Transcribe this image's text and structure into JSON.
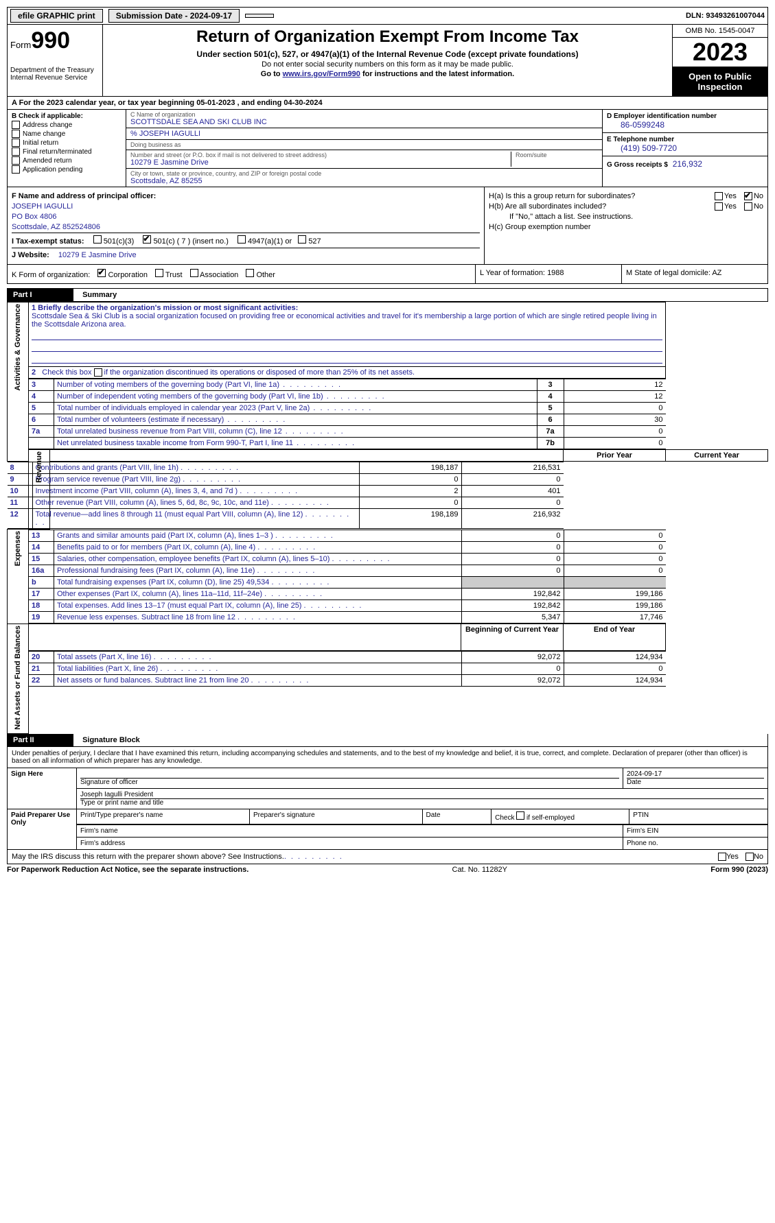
{
  "topbar": {
    "efile": "efile GRAPHIC print",
    "submission_label": "Submission Date - 2024-09-17",
    "dln_label": "DLN: 93493261007044"
  },
  "header": {
    "form_prefix": "Form",
    "form_number": "990",
    "dept": "Department of the Treasury Internal Revenue Service",
    "title": "Return of Organization Exempt From Income Tax",
    "sub1": "Under section 501(c), 527, or 4947(a)(1) of the Internal Revenue Code (except private foundations)",
    "sub2": "Do not enter social security numbers on this form as it may be made public.",
    "sub3_pre": "Go to ",
    "sub3_link": "www.irs.gov/Form990",
    "sub3_post": " for instructions and the latest information.",
    "omb": "OMB No. 1545-0047",
    "year": "2023",
    "open": "Open to Public Inspection"
  },
  "lineA": "A   For the 2023 calendar year, or tax year beginning 05-01-2023    , and ending 04-30-2024",
  "boxB": {
    "header": "B Check if applicable:",
    "items": [
      "Address change",
      "Name change",
      "Initial return",
      "Final return/terminated",
      "Amended return",
      "Application pending"
    ]
  },
  "boxC": {
    "name_lbl": "C Name of organization",
    "name": "SCOTTSDALE SEA AND SKI CLUB INC",
    "care_of": "% JOSEPH IAGULLI",
    "dba_lbl": "Doing business as",
    "dba": "",
    "street_lbl": "Number and street (or P.O. box if mail is not delivered to street address)",
    "street": "10279 E Jasmine Drive",
    "room_lbl": "Room/suite",
    "room": "",
    "city_lbl": "City or town, state or province, country, and ZIP or foreign postal code",
    "city": "Scottsdale, AZ   85255"
  },
  "boxD": {
    "ein_lbl": "D Employer identification number",
    "ein": "86-0599248",
    "phone_lbl": "E Telephone number",
    "phone": "(419) 509-7720",
    "gross_lbl": "G Gross receipts $",
    "gross": "216,932"
  },
  "boxF": {
    "lbl": "F   Name and address of principal officer:",
    "name": "JOSEPH IAGULLI",
    "addr1": "PO Box 4806",
    "addr2": "Scottsdale, AZ   852524806"
  },
  "boxH": {
    "ha": "H(a)  Is this a group return for subordinates?",
    "hb": "H(b)  Are all subordinates included?",
    "hb_note": "If \"No,\" attach a list. See instructions.",
    "hc": "H(c)  Group exemption number"
  },
  "lineI": {
    "lbl": "I    Tax-exempt status:",
    "opts": [
      "501(c)(3)",
      "501(c) ( 7 ) (insert no.)",
      "4947(a)(1) or",
      "527"
    ]
  },
  "lineJ": {
    "lbl": "J    Website:",
    "val": "10279 E Jasmine Drive"
  },
  "lineK": {
    "lbl": "K Form of organization:",
    "opts": [
      "Corporation",
      "Trust",
      "Association",
      "Other"
    ],
    "L_lbl": "L Year of formation:",
    "L_val": "1988",
    "M_lbl": "M State of legal domicile:",
    "M_val": "AZ"
  },
  "part1": {
    "num": "Part I",
    "title": "Summary"
  },
  "summary": {
    "sections": {
      "gov": "Activities & Governance",
      "rev": "Revenue",
      "exp": "Expenses",
      "net": "Net Assets or Fund Balances"
    },
    "mission_lbl": "1   Briefly describe the organization's mission or most significant activities:",
    "mission": "Scottsdale Sea & Ski Club is a social organization focused on providing free or economical activities and travel for it's membership a large portion of which are single retired people living in the Scottsdale Arizona area.",
    "line2": "2    Check this box          if the organization discontinued its operations or disposed of more than 25% of its net assets.",
    "rows_gov": [
      {
        "n": "3",
        "d": "Number of voting members of the governing body (Part VI, line 1a)",
        "box": "3",
        "v": "12"
      },
      {
        "n": "4",
        "d": "Number of independent voting members of the governing body (Part VI, line 1b)",
        "box": "4",
        "v": "12"
      },
      {
        "n": "5",
        "d": "Total number of individuals employed in calendar year 2023 (Part V, line 2a)",
        "box": "5",
        "v": "0"
      },
      {
        "n": "6",
        "d": "Total number of volunteers (estimate if necessary)",
        "box": "6",
        "v": "30"
      },
      {
        "n": "7a",
        "d": "Total unrelated business revenue from Part VIII, column (C), line 12",
        "box": "7a",
        "v": "0"
      },
      {
        "n": "",
        "d": "Net unrelated business taxable income from Form 990-T, Part I, line 11",
        "box": "7b",
        "v": "0"
      }
    ],
    "col_hdr_prior": "Prior Year",
    "col_hdr_current": "Current Year",
    "rows_rev": [
      {
        "n": "8",
        "d": "Contributions and grants (Part VIII, line 1h)",
        "p": "198,187",
        "c": "216,531"
      },
      {
        "n": "9",
        "d": "Program service revenue (Part VIII, line 2g)",
        "p": "0",
        "c": "0"
      },
      {
        "n": "10",
        "d": "Investment income (Part VIII, column (A), lines 3, 4, and 7d )",
        "p": "2",
        "c": "401"
      },
      {
        "n": "11",
        "d": "Other revenue (Part VIII, column (A), lines 5, 6d, 8c, 9c, 10c, and 11e)",
        "p": "0",
        "c": "0"
      },
      {
        "n": "12",
        "d": "Total revenue—add lines 8 through 11 (must equal Part VIII, column (A), line 12)",
        "p": "198,189",
        "c": "216,932"
      }
    ],
    "rows_exp": [
      {
        "n": "13",
        "d": "Grants and similar amounts paid (Part IX, column (A), lines 1–3 )",
        "p": "0",
        "c": "0"
      },
      {
        "n": "14",
        "d": "Benefits paid to or for members (Part IX, column (A), line 4)",
        "p": "0",
        "c": "0"
      },
      {
        "n": "15",
        "d": "Salaries, other compensation, employee benefits (Part IX, column (A), lines 5–10)",
        "p": "0",
        "c": "0"
      },
      {
        "n": "16a",
        "d": "Professional fundraising fees (Part IX, column (A), line 11e)",
        "p": "0",
        "c": "0"
      },
      {
        "n": "b",
        "d": "Total fundraising expenses (Part IX, column (D), line 25) 49,534",
        "p": "",
        "c": "",
        "grey": true
      },
      {
        "n": "17",
        "d": "Other expenses (Part IX, column (A), lines 11a–11d, 11f–24e)",
        "p": "192,842",
        "c": "199,186"
      },
      {
        "n": "18",
        "d": "Total expenses. Add lines 13–17 (must equal Part IX, column (A), line 25)",
        "p": "192,842",
        "c": "199,186"
      },
      {
        "n": "19",
        "d": "Revenue less expenses. Subtract line 18 from line 12",
        "p": "5,347",
        "c": "17,746"
      }
    ],
    "col_hdr_begin": "Beginning of Current Year",
    "col_hdr_end": "End of Year",
    "rows_net": [
      {
        "n": "20",
        "d": "Total assets (Part X, line 16)",
        "p": "92,072",
        "c": "124,934"
      },
      {
        "n": "21",
        "d": "Total liabilities (Part X, line 26)",
        "p": "0",
        "c": "0"
      },
      {
        "n": "22",
        "d": "Net assets or fund balances. Subtract line 21 from line 20",
        "p": "92,072",
        "c": "124,934"
      }
    ]
  },
  "part2": {
    "num": "Part II",
    "title": "Signature Block"
  },
  "sig": {
    "decl": "Under penalties of perjury, I declare that I have examined this return, including accompanying schedules and statements, and to the best of my knowledge and belief, it is true, correct, and complete. Declaration of preparer (other than officer) is based on all information of which preparer has any knowledge.",
    "sign_here": "Sign Here",
    "sig_officer_lbl": "Signature of officer",
    "sig_date": "2024-09-17",
    "date_lbl": "Date",
    "officer_name": "Joseph Iagulli  President",
    "officer_name_lbl": "Type or print name and title",
    "paid": "Paid Preparer Use Only",
    "prep_name_lbl": "Print/Type preparer's name",
    "prep_sig_lbl": "Preparer's signature",
    "check_self": "Check          if self-employed",
    "ptin_lbl": "PTIN",
    "firm_name_lbl": "Firm's name",
    "firm_ein_lbl": "Firm's EIN",
    "firm_addr_lbl": "Firm's address",
    "firm_phone_lbl": "Phone no."
  },
  "footer": {
    "discuss": "May the IRS discuss this return with the preparer shown above? See Instructions.",
    "paperwork": "For Paperwork Reduction Act Notice, see the separate instructions.",
    "cat": "Cat. No. 11282Y",
    "form": "Form 990 (2023)"
  },
  "yn": {
    "yes": "Yes",
    "no": "No"
  }
}
